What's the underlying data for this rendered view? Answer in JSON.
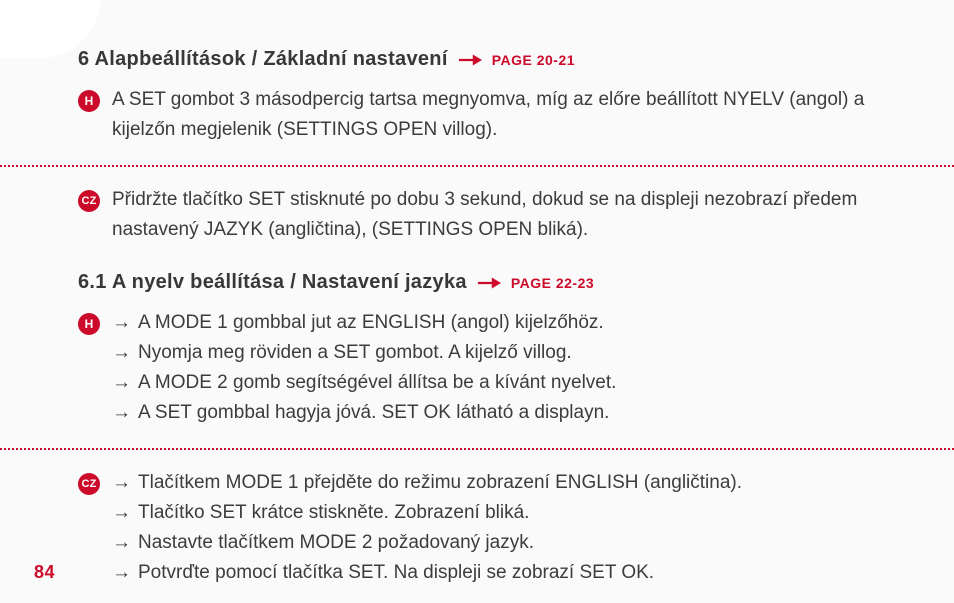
{
  "colors": {
    "accent": "#cc0a2a",
    "text": "#3a3a3a",
    "bg": "#fafafa"
  },
  "sec6": {
    "title": "6 Alapbeállítások / Základní nastavení",
    "pageref": "PAGE 20-21",
    "h_badge": "H",
    "cz_badge": "CZ",
    "h_text": "A SET gombot 3 másodpercig tartsa megnyomva, míg az előre beállított NYELV (angol) a kijelzőn megjelenik (SETTINGS OPEN villog).",
    "cz_text": "Přidržte tlačítko SET stisknuté po dobu 3 sekund, dokud se na displeji nezobrazí předem nastavený JAZYK (angličtina), (SETTINGS OPEN bliká)."
  },
  "sec61": {
    "title": "6.1 A nyelv beállítása / Nastavení jazyka",
    "pageref": "PAGE 22-23",
    "h_badge": "H",
    "cz_badge": "CZ",
    "h_items": [
      "A MODE 1 gombbal jut az ENGLISH (angol) kijelzőhöz.",
      "Nyomja meg röviden a SET gombot. A kijelző villog.",
      "A MODE 2 gomb segítségével állítsa be a kívánt nyelvet.",
      "A SET gombbal hagyja jóvá. SET OK látható a displayn."
    ],
    "cz_items": [
      "Tlačítkem MODE 1 přejděte do režimu zobrazení ENGLISH (angličtina).",
      "Tlačítko SET krátce stiskněte. Zobrazení bliká.",
      "Nastavte tlačítkem MODE 2 požadovaný jazyk.",
      "Potvrďte pomocí tlačítka SET. Na displeji se zobrazí SET OK."
    ]
  },
  "page_number": "84"
}
